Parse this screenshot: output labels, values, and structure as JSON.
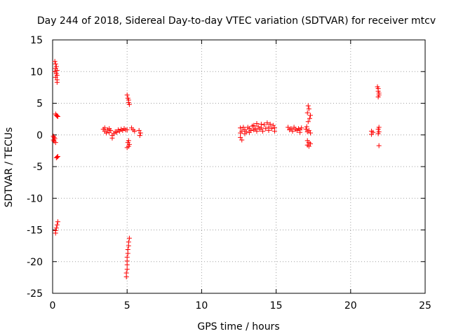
{
  "chart_data": {
    "type": "scatter",
    "title": "Day 244 of 2018, Sidereal Day-to-day VTEC variation (SDTVAR) for receiver mtcv",
    "xlabel": "GPS time / hours",
    "ylabel": "SDTVAR / TECUs",
    "xlim": [
      0,
      25
    ],
    "ylim": [
      -25,
      15
    ],
    "xticks": [
      0,
      5,
      10,
      15,
      20,
      25
    ],
    "yticks": [
      -25,
      -20,
      -15,
      -10,
      -5,
      0,
      5,
      10,
      15
    ],
    "grid": true,
    "marker": "+",
    "color": "#ff0000",
    "series": [
      {
        "name": "mtcv",
        "points": [
          [
            0.15,
            11.6
          ],
          [
            0.2,
            11.2
          ],
          [
            0.25,
            10.8
          ],
          [
            0.2,
            10.5
          ],
          [
            0.3,
            10.2
          ],
          [
            0.15,
            10.0
          ],
          [
            0.25,
            9.7
          ],
          [
            0.3,
            9.4
          ],
          [
            0.2,
            9.1
          ],
          [
            0.3,
            8.7
          ],
          [
            0.3,
            8.3
          ],
          [
            0.2,
            3.3
          ],
          [
            0.25,
            3.1
          ],
          [
            0.3,
            3.0
          ],
          [
            0.35,
            2.9
          ],
          [
            0.05,
            -0.2
          ],
          [
            0.1,
            -0.4
          ],
          [
            0.15,
            -0.6
          ],
          [
            0.05,
            -0.8
          ],
          [
            0.1,
            -1.0
          ],
          [
            0.2,
            -1.2
          ],
          [
            0.25,
            -3.6
          ],
          [
            0.3,
            -3.5
          ],
          [
            0.35,
            -3.4
          ],
          [
            0.35,
            -13.7
          ],
          [
            0.3,
            -14.2
          ],
          [
            0.25,
            -14.7
          ],
          [
            0.2,
            -15.1
          ],
          [
            0.2,
            -15.5
          ],
          [
            3.4,
            0.9
          ],
          [
            3.5,
            1.1
          ],
          [
            3.5,
            0.6
          ],
          [
            3.6,
            0.3
          ],
          [
            3.7,
            0.8
          ],
          [
            3.8,
            1.0
          ],
          [
            3.8,
            0.4
          ],
          [
            3.9,
            0.7
          ],
          [
            4.0,
            -0.1
          ],
          [
            4.0,
            -0.5
          ],
          [
            4.1,
            0.2
          ],
          [
            4.2,
            0.5
          ],
          [
            4.3,
            0.4
          ],
          [
            4.4,
            0.8
          ],
          [
            4.5,
            0.6
          ],
          [
            4.6,
            0.9
          ],
          [
            4.7,
            0.7
          ],
          [
            4.8,
            1.0
          ],
          [
            4.9,
            0.8
          ],
          [
            5.0,
            0.8
          ],
          [
            5.0,
            6.3
          ],
          [
            5.05,
            5.8
          ],
          [
            5.1,
            5.5
          ],
          [
            5.1,
            5.1
          ],
          [
            5.15,
            4.8
          ],
          [
            5.1,
            -0.9
          ],
          [
            5.05,
            -1.2
          ],
          [
            5.15,
            -1.5
          ],
          [
            5.1,
            -1.8
          ],
          [
            5.0,
            -2.0
          ],
          [
            5.15,
            -16.3
          ],
          [
            5.1,
            -16.9
          ],
          [
            5.1,
            -17.5
          ],
          [
            5.05,
            -18.1
          ],
          [
            5.05,
            -18.7
          ],
          [
            5.0,
            -19.3
          ],
          [
            5.0,
            -19.9
          ],
          [
            5.0,
            -20.5
          ],
          [
            5.0,
            -21.2
          ],
          [
            4.95,
            -21.8
          ],
          [
            4.95,
            -22.4
          ],
          [
            5.3,
            1.1
          ],
          [
            5.4,
            0.8
          ],
          [
            5.5,
            0.6
          ],
          [
            5.8,
            0.7
          ],
          [
            5.85,
            -0.1
          ],
          [
            5.9,
            0.3
          ],
          [
            12.6,
            1.1
          ],
          [
            12.6,
            0.3
          ],
          [
            12.6,
            -0.4
          ],
          [
            12.7,
            -0.8
          ],
          [
            12.7,
            0.6
          ],
          [
            12.8,
            1.2
          ],
          [
            12.9,
            0.2
          ],
          [
            12.9,
            0.8
          ],
          [
            13.0,
            0.5
          ],
          [
            13.1,
            1.2
          ],
          [
            13.2,
            0.4
          ],
          [
            13.2,
            1.0
          ],
          [
            13.3,
            0.7
          ],
          [
            13.4,
            1.4
          ],
          [
            13.5,
            0.8
          ],
          [
            13.5,
            1.5
          ],
          [
            13.6,
            1.0
          ],
          [
            13.7,
            1.8
          ],
          [
            13.7,
            0.6
          ],
          [
            13.8,
            1.3
          ],
          [
            13.9,
            0.9
          ],
          [
            14.0,
            1.7
          ],
          [
            14.0,
            1.1
          ],
          [
            14.1,
            0.6
          ],
          [
            14.2,
            1.6
          ],
          [
            14.3,
            1.0
          ],
          [
            14.4,
            1.9
          ],
          [
            14.5,
            1.2
          ],
          [
            14.5,
            0.7
          ],
          [
            14.6,
            1.7
          ],
          [
            14.7,
            1.0
          ],
          [
            14.8,
            1.5
          ],
          [
            14.9,
            1.1
          ],
          [
            14.9,
            0.6
          ],
          [
            15.8,
            1.2
          ],
          [
            15.9,
            0.8
          ],
          [
            16.0,
            1.0
          ],
          [
            16.1,
            0.6
          ],
          [
            16.2,
            1.2
          ],
          [
            16.3,
            0.9
          ],
          [
            16.4,
            0.7
          ],
          [
            16.5,
            1.0
          ],
          [
            16.6,
            0.8
          ],
          [
            16.6,
            0.4
          ],
          [
            16.7,
            1.1
          ],
          [
            17.15,
            4.6
          ],
          [
            17.2,
            4.1
          ],
          [
            17.1,
            3.5
          ],
          [
            17.3,
            3.1
          ],
          [
            17.25,
            2.6
          ],
          [
            17.15,
            2.1
          ],
          [
            17.05,
            1.3
          ],
          [
            17.0,
            0.9
          ],
          [
            17.1,
            0.5
          ],
          [
            17.2,
            0.7
          ],
          [
            17.3,
            0.3
          ],
          [
            17.1,
            -0.9
          ],
          [
            17.2,
            -1.2
          ],
          [
            17.3,
            -1.4
          ],
          [
            17.1,
            -1.6
          ],
          [
            17.2,
            -1.8
          ],
          [
            21.4,
            0.6
          ],
          [
            21.4,
            0.1
          ],
          [
            21.5,
            0.4
          ],
          [
            21.8,
            7.6
          ],
          [
            21.85,
            7.3
          ],
          [
            21.85,
            6.9
          ],
          [
            21.9,
            6.6
          ],
          [
            21.9,
            6.3
          ],
          [
            21.85,
            6.0
          ],
          [
            21.9,
            1.2
          ],
          [
            21.85,
            0.9
          ],
          [
            21.9,
            0.5
          ],
          [
            21.85,
            0.2
          ],
          [
            21.9,
            -1.7
          ]
        ]
      }
    ]
  }
}
